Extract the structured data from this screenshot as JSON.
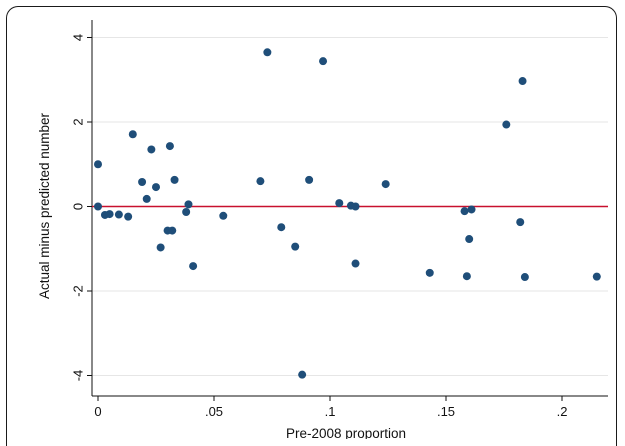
{
  "chart_data": {
    "type": "scatter",
    "title": "",
    "xlabel": "Pre-2008 proportion",
    "ylabel": "Actual minus predicted number",
    "xlim": [
      0,
      0.2165
    ],
    "ylim": [
      -4,
      4
    ],
    "x_ticks": [
      "0",
      ".05",
      ".1",
      ".15",
      ".2"
    ],
    "y_ticks": [
      "-4",
      "-2",
      "0",
      "2",
      "4"
    ],
    "grid": "horizontal",
    "reference_line": {
      "y": 0,
      "color": "#c8102e"
    },
    "marker_color": "#1f4e79",
    "points": [
      {
        "x": 0.0,
        "y": 1.0
      },
      {
        "x": 0.0,
        "y": 0.0
      },
      {
        "x": 0.003,
        "y": -0.2
      },
      {
        "x": 0.005,
        "y": -0.18
      },
      {
        "x": 0.009,
        "y": -0.19
      },
      {
        "x": 0.013,
        "y": -0.24
      },
      {
        "x": 0.015,
        "y": 1.71
      },
      {
        "x": 0.019,
        "y": 0.58
      },
      {
        "x": 0.021,
        "y": 0.18
      },
      {
        "x": 0.023,
        "y": 1.35
      },
      {
        "x": 0.025,
        "y": 0.46
      },
      {
        "x": 0.027,
        "y": -0.97
      },
      {
        "x": 0.03,
        "y": -0.57
      },
      {
        "x": 0.031,
        "y": 1.43
      },
      {
        "x": 0.032,
        "y": -0.57
      },
      {
        "x": 0.033,
        "y": 0.63
      },
      {
        "x": 0.038,
        "y": -0.13
      },
      {
        "x": 0.039,
        "y": 0.05
      },
      {
        "x": 0.041,
        "y": -1.41
      },
      {
        "x": 0.054,
        "y": -0.22
      },
      {
        "x": 0.07,
        "y": 0.6
      },
      {
        "x": 0.073,
        "y": 3.65
      },
      {
        "x": 0.079,
        "y": -0.49
      },
      {
        "x": 0.085,
        "y": -0.95
      },
      {
        "x": 0.088,
        "y": -3.98
      },
      {
        "x": 0.091,
        "y": 0.63
      },
      {
        "x": 0.097,
        "y": 3.44
      },
      {
        "x": 0.104,
        "y": 0.08
      },
      {
        "x": 0.109,
        "y": 0.02
      },
      {
        "x": 0.111,
        "y": 0.0
      },
      {
        "x": 0.111,
        "y": -1.35
      },
      {
        "x": 0.124,
        "y": 0.53
      },
      {
        "x": 0.143,
        "y": -1.57
      },
      {
        "x": 0.158,
        "y": -0.11
      },
      {
        "x": 0.159,
        "y": -1.65
      },
      {
        "x": 0.16,
        "y": -0.77
      },
      {
        "x": 0.161,
        "y": -0.07
      },
      {
        "x": 0.176,
        "y": 1.94
      },
      {
        "x": 0.182,
        "y": -0.37
      },
      {
        "x": 0.183,
        "y": 2.97
      },
      {
        "x": 0.184,
        "y": -1.67
      },
      {
        "x": 0.215,
        "y": -1.66
      }
    ]
  }
}
